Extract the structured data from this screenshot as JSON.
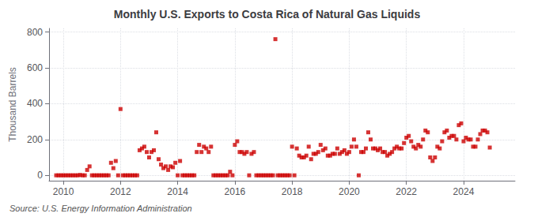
{
  "chart_data": {
    "type": "scatter",
    "title": "Monthly U.S. Exports to Costa Rica of Natural Gas Liquids",
    "ylabel": "Thousand Barrels",
    "annotation": "Source: U.S. Energy Information Administration",
    "color": "#cc0000",
    "marker": "square",
    "grid": true,
    "xlim": [
      2009.5,
      2025.8
    ],
    "ylim": [
      -30,
      820
    ],
    "xticks": [
      2010,
      2012,
      2014,
      2016,
      2018,
      2020,
      2022,
      2024
    ],
    "yticks": [
      0,
      200,
      400,
      600,
      800
    ],
    "x": [
      2009.75,
      2009.833,
      2009.917,
      2010.0,
      2010.083,
      2010.167,
      2010.25,
      2010.333,
      2010.417,
      2010.5,
      2010.583,
      2010.667,
      2010.75,
      2010.833,
      2010.917,
      2011.0,
      2011.083,
      2011.167,
      2011.25,
      2011.333,
      2011.417,
      2011.5,
      2011.583,
      2011.667,
      2011.75,
      2011.833,
      2011.917,
      2012.0,
      2012.083,
      2012.167,
      2012.25,
      2012.333,
      2012.417,
      2012.5,
      2012.583,
      2012.667,
      2012.75,
      2012.833,
      2012.917,
      2013.0,
      2013.083,
      2013.167,
      2013.25,
      2013.333,
      2013.417,
      2013.5,
      2013.583,
      2013.667,
      2013.75,
      2013.833,
      2013.917,
      2014.0,
      2014.083,
      2014.167,
      2014.25,
      2014.333,
      2014.417,
      2014.5,
      2014.583,
      2014.667,
      2014.75,
      2014.833,
      2014.917,
      2015.0,
      2015.083,
      2015.167,
      2015.25,
      2015.333,
      2015.417,
      2015.5,
      2015.583,
      2015.667,
      2015.75,
      2015.833,
      2015.917,
      2016.0,
      2016.083,
      2016.167,
      2016.25,
      2016.333,
      2016.417,
      2016.5,
      2016.583,
      2016.667,
      2016.75,
      2016.833,
      2016.917,
      2017.0,
      2017.083,
      2017.167,
      2017.25,
      2017.333,
      2017.417,
      2017.5,
      2017.583,
      2017.667,
      2017.75,
      2017.833,
      2017.917,
      2018.0,
      2018.083,
      2018.167,
      2018.25,
      2018.333,
      2018.417,
      2018.5,
      2018.583,
      2018.667,
      2018.75,
      2018.833,
      2018.917,
      2019.0,
      2019.083,
      2019.167,
      2019.25,
      2019.333,
      2019.417,
      2019.5,
      2019.583,
      2019.667,
      2019.75,
      2019.833,
      2019.917,
      2020.0,
      2020.083,
      2020.167,
      2020.25,
      2020.333,
      2020.417,
      2020.5,
      2020.583,
      2020.667,
      2020.75,
      2020.833,
      2020.917,
      2021.0,
      2021.083,
      2021.167,
      2021.25,
      2021.333,
      2021.417,
      2021.5,
      2021.583,
      2021.667,
      2021.75,
      2021.833,
      2021.917,
      2022.0,
      2022.083,
      2022.167,
      2022.25,
      2022.333,
      2022.417,
      2022.5,
      2022.583,
      2022.667,
      2022.75,
      2022.833,
      2022.917,
      2023.0,
      2023.083,
      2023.167,
      2023.25,
      2023.333,
      2023.417,
      2023.5,
      2023.583,
      2023.667,
      2023.75,
      2023.833,
      2023.917,
      2024.0,
      2024.083,
      2024.167,
      2024.25,
      2024.333,
      2024.417,
      2024.5,
      2024.583,
      2024.667,
      2024.75,
      2024.833,
      2024.917
    ],
    "values": [
      0,
      0,
      0,
      0,
      0,
      0,
      0,
      0,
      0,
      0,
      2,
      0,
      0,
      30,
      50,
      0,
      0,
      0,
      0,
      0,
      0,
      0,
      0,
      70,
      40,
      80,
      0,
      370,
      0,
      0,
      0,
      0,
      0,
      0,
      0,
      140,
      150,
      160,
      130,
      100,
      130,
      140,
      240,
      90,
      60,
      40,
      50,
      30,
      50,
      45,
      70,
      0,
      80,
      0,
      0,
      0,
      0,
      0,
      0,
      130,
      170,
      130,
      160,
      150,
      130,
      160,
      0,
      0,
      0,
      0,
      0,
      0,
      0,
      20,
      0,
      170,
      190,
      130,
      130,
      120,
      130,
      0,
      120,
      130,
      0,
      0,
      0,
      0,
      0,
      0,
      0,
      0,
      760,
      0,
      0,
      0,
      0,
      0,
      0,
      160,
      0,
      150,
      110,
      100,
      100,
      110,
      160,
      90,
      120,
      120,
      130,
      170,
      140,
      150,
      110,
      110,
      120,
      120,
      150,
      120,
      130,
      140,
      120,
      130,
      160,
      200,
      160,
      0,
      130,
      130,
      150,
      240,
      200,
      150,
      150,
      140,
      150,
      130,
      130,
      110,
      120,
      130,
      150,
      160,
      150,
      150,
      180,
      210,
      220,
      190,
      160,
      150,
      170,
      160,
      200,
      250,
      240,
      100,
      80,
      100,
      160,
      150,
      190,
      240,
      250,
      210,
      220,
      220,
      200,
      280,
      290,
      190,
      210,
      200,
      200,
      160,
      160,
      200,
      230,
      250,
      250,
      240,
      155
    ]
  }
}
